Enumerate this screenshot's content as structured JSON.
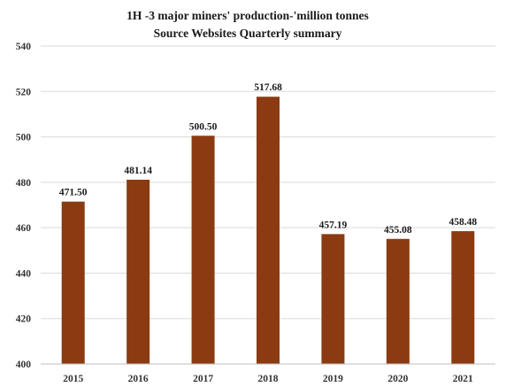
{
  "chart_data": {
    "type": "bar",
    "title": "1H -3 major miners' production-'million tonnes",
    "subtitle": "Source Websites Quarterly summary",
    "categories": [
      "2015",
      "2016",
      "2017",
      "2018",
      "2019",
      "2020",
      "2021"
    ],
    "values": [
      471.5,
      481.14,
      500.5,
      517.68,
      457.19,
      455.08,
      458.48
    ],
    "data_labels": [
      "471.50",
      "481.14",
      "500.50",
      "517.68",
      "457.19",
      "455.08",
      "458.48"
    ],
    "xlabel": "",
    "ylabel": "",
    "ylim": [
      400,
      540
    ],
    "yticks": [
      "400",
      "420",
      "440",
      "460",
      "480",
      "500",
      "520",
      "540"
    ],
    "grid": true,
    "legend": "none",
    "bar_color": "#8B3A11"
  }
}
